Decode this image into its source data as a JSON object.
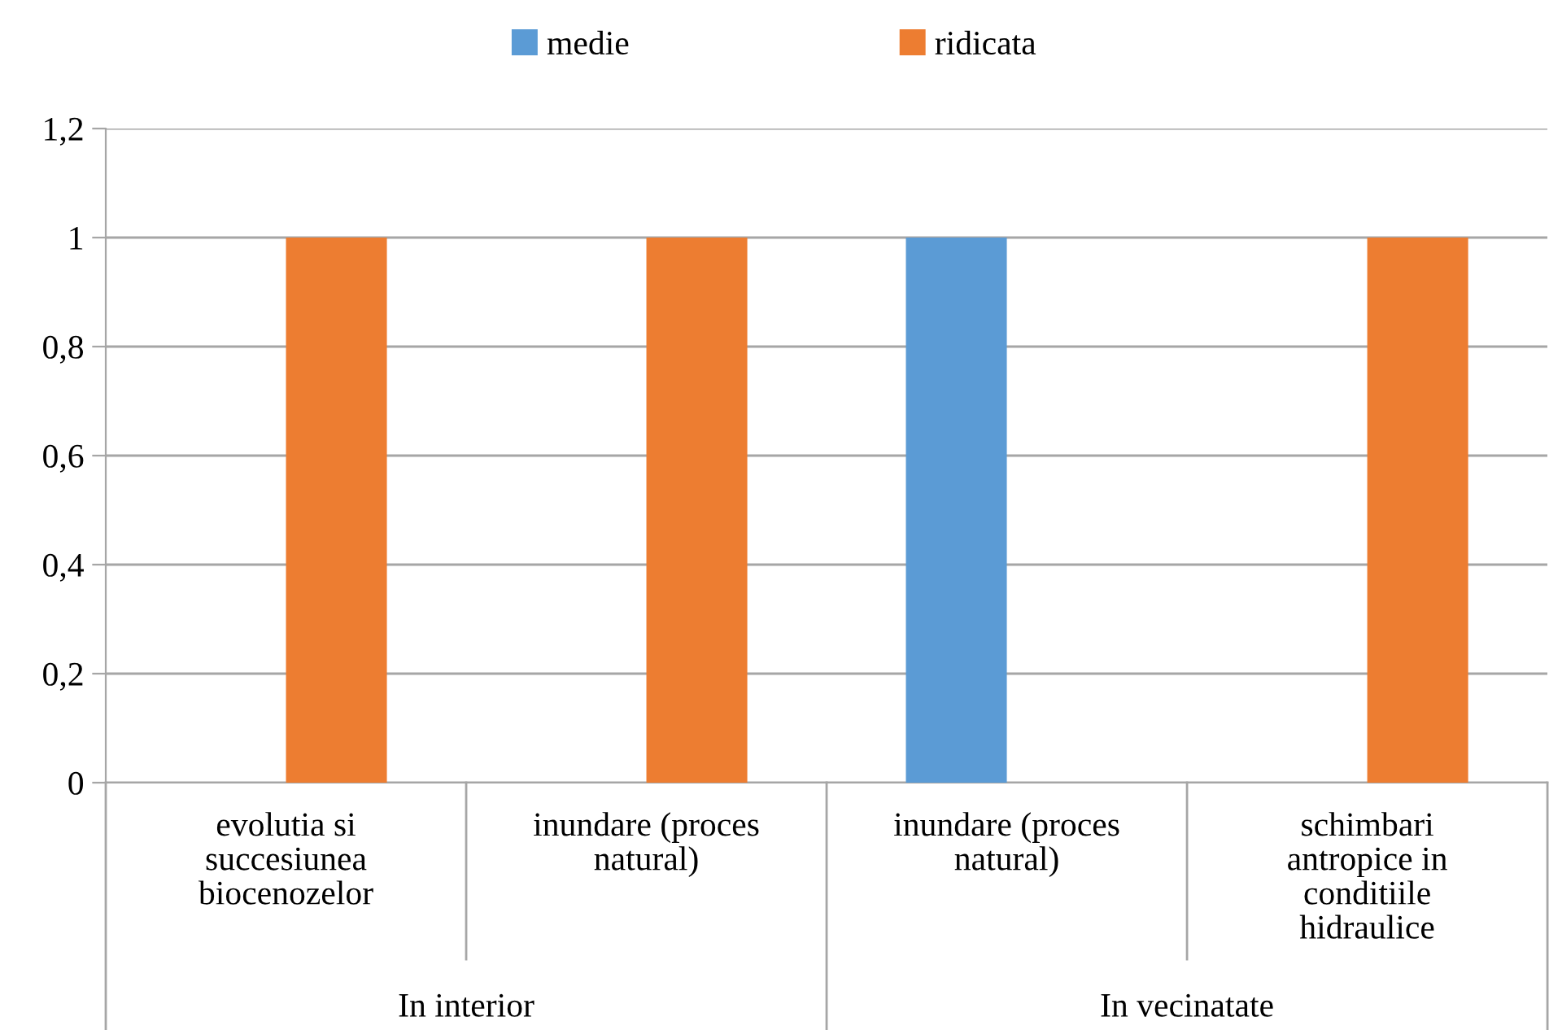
{
  "chart_data": {
    "type": "bar",
    "categories": [
      "evolutia si succesiunea biocenozelor",
      "inundare (proces natural)",
      "inundare (proces natural)",
      "schimbari antropice in conditiile hidraulice"
    ],
    "series": [
      {
        "name": "medie",
        "color": "#5b9bd5",
        "values": [
          null,
          null,
          1,
          null
        ]
      },
      {
        "name": "ridicata",
        "color": "#ed7d31",
        "values": [
          1,
          1,
          null,
          1
        ]
      }
    ],
    "annotations": [
      "In interior",
      "In vecinatate"
    ],
    "ylim": [
      0,
      1.2
    ],
    "yticks": [
      0,
      {
        "value": 0.2,
        "label": "0,2"
      },
      {
        "value": 0.4,
        "label": "0,4"
      },
      {
        "value": 0.6,
        "label": "0,6"
      },
      {
        "value": 0.8,
        "label": "0,8"
      },
      1,
      {
        "value": 1.2,
        "label": "1,2"
      }
    ],
    "grid": "y",
    "legend": "top"
  }
}
